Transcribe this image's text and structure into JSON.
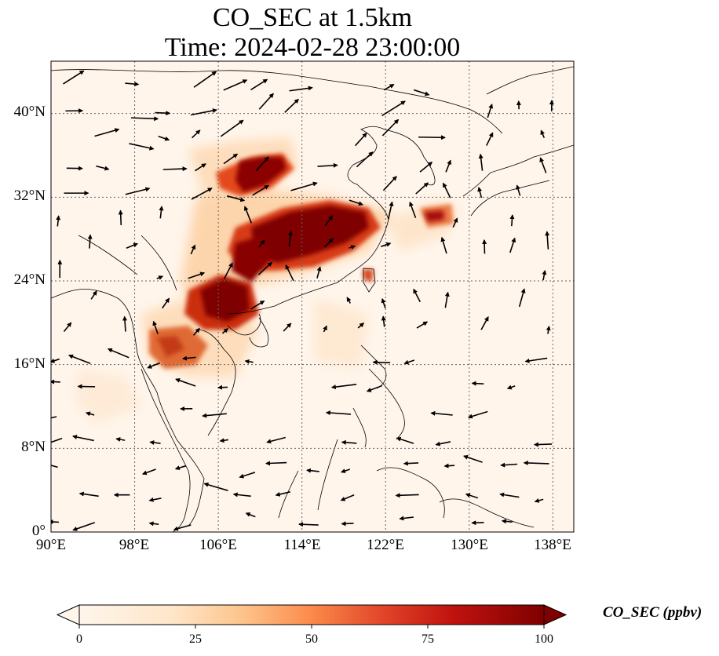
{
  "title": "CO_SEC at 1.5km",
  "subtitle": "Time: 2024-02-28 23:00:00",
  "map": {
    "lon_range": [
      90,
      140
    ],
    "lat_range": [
      0,
      45
    ],
    "x_ticks": [
      "90°E",
      "98°E",
      "106°E",
      "114°E",
      "122°E",
      "130°E",
      "138°E"
    ],
    "y_ticks": [
      "0°",
      "8°N",
      "16°N",
      "24°N",
      "32°N",
      "40°N"
    ],
    "gridlines": true,
    "field_name": "CO_SEC",
    "height": "1.5km",
    "plumes": [
      {
        "lon": 112.0,
        "lat": 34.5,
        "level": 100
      },
      {
        "lon": 116.5,
        "lat": 29.5,
        "level": 100
      },
      {
        "lon": 112.0,
        "lat": 28.0,
        "level": 95
      },
      {
        "lon": 106.5,
        "lat": 22.5,
        "level": 100
      },
      {
        "lon": 103.0,
        "lat": 18.5,
        "level": 80
      },
      {
        "lon": 127.0,
        "lat": 30.2,
        "level": 70
      },
      {
        "lon": 120.7,
        "lat": 24.6,
        "level": 80
      }
    ],
    "colors": [
      "#fff5eb",
      "#fdd0a2",
      "#fd8d3c",
      "#d94801",
      "#7f0000"
    ]
  },
  "colorbar": {
    "label": "CO_SEC (ppbv)",
    "ticks": [
      "0",
      "25",
      "50",
      "75",
      "100"
    ],
    "range": [
      0,
      100
    ],
    "extend": "both"
  }
}
